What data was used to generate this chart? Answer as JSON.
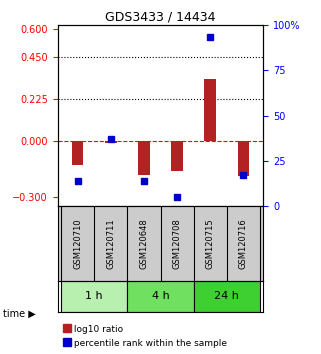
{
  "title": "GDS3433 / 14434",
  "samples": [
    "GSM120710",
    "GSM120711",
    "GSM120648",
    "GSM120708",
    "GSM120715",
    "GSM120716"
  ],
  "log10_ratio": [
    -0.13,
    -0.01,
    -0.18,
    -0.16,
    0.33,
    -0.19
  ],
  "percentile_rank": [
    14,
    37,
    14,
    5,
    93,
    17
  ],
  "time_groups": [
    {
      "label": "1 h",
      "samples": [
        "GSM120710",
        "GSM120711"
      ],
      "color": "#b8f0b0"
    },
    {
      "label": "4 h",
      "samples": [
        "GSM120648",
        "GSM120708"
      ],
      "color": "#70e060"
    },
    {
      "label": "24 h",
      "samples": [
        "GSM120715",
        "GSM120716"
      ],
      "color": "#3ed030"
    }
  ],
  "ylim_left": [
    -0.35,
    0.62
  ],
  "ylim_right": [
    0,
    100
  ],
  "yticks_left": [
    -0.3,
    0,
    0.225,
    0.45,
    0.6
  ],
  "yticks_right": [
    0,
    25,
    50,
    75,
    100
  ],
  "hlines": [
    0.45,
    0.225
  ],
  "bar_color": "#b22222",
  "dot_color": "#0000cc",
  "background_color": "#ffffff",
  "plot_bg": "#ffffff",
  "grid_color": "#000000"
}
